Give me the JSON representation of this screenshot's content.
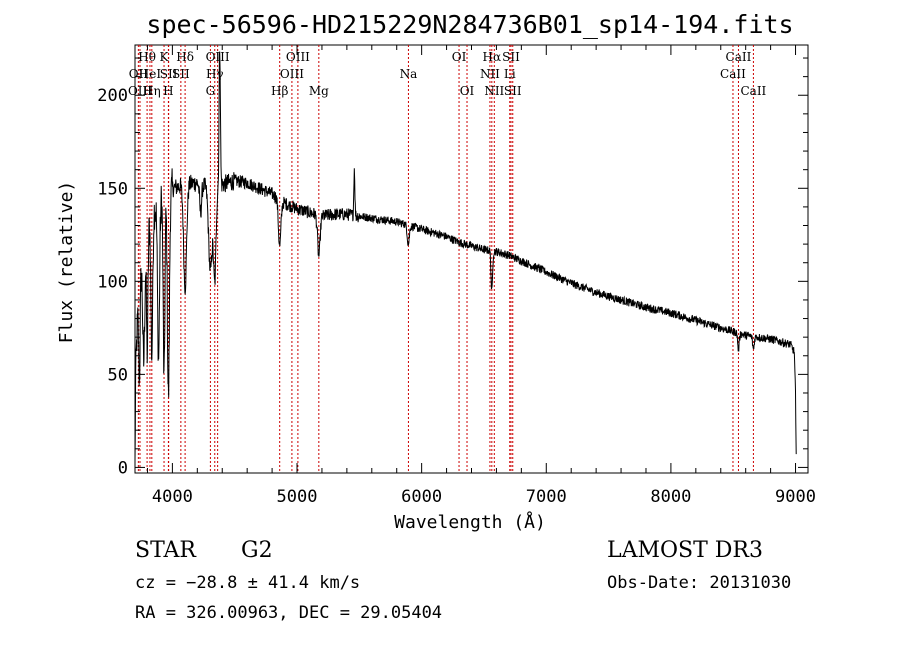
{
  "chart_data": {
    "type": "line",
    "title": "spec-56596-HD215229N284736B01_sp14-194.fits",
    "xlabel": "Wavelength (Å)",
    "ylabel": "Flux (relative)",
    "xlim": [
      3700,
      9100
    ],
    "ylim": [
      -3,
      227
    ],
    "xticks": [
      4000,
      5000,
      6000,
      7000,
      8000,
      9000
    ],
    "xtick_labels": [
      "4000",
      "5000",
      "6000",
      "7000",
      "8000",
      "9000"
    ],
    "yticks": [
      0,
      50,
      100,
      150,
      200
    ],
    "ytick_labels": [
      "0",
      "50",
      "100",
      "150",
      "200"
    ],
    "lines": [
      {
        "label": "Hθ",
        "wave": 3797,
        "row": 1
      },
      {
        "label": "OII",
        "wave": 3727,
        "row": 2
      },
      {
        "label": "OIII",
        "wave": 3740,
        "row": 3
      },
      {
        "label": "HeI",
        "wave": 3820,
        "row": 2
      },
      {
        "label": "Hη",
        "wave": 3835,
        "row": 3
      },
      {
        "label": "K",
        "wave": 3933,
        "row": 1
      },
      {
        "label": "SII",
        "wave": 3970,
        "row": 2
      },
      {
        "label": "H",
        "wave": 3968,
        "row": 3
      },
      {
        "label": "Hδ",
        "wave": 4102,
        "row": 1
      },
      {
        "label": "SII",
        "wave": 4068,
        "row": 2
      },
      {
        "label": "OIII",
        "wave": 4363,
        "row": 1
      },
      {
        "label": "Hγ",
        "wave": 4340,
        "row": 2
      },
      {
        "label": "G",
        "wave": 4305,
        "row": 3
      },
      {
        "label": "OIII",
        "wave": 5007,
        "row": 1
      },
      {
        "label": "OIII",
        "wave": 4959,
        "row": 2
      },
      {
        "label": "Hβ",
        "wave": 4861,
        "row": 3
      },
      {
        "label": "Mg",
        "wave": 5175,
        "row": 3
      },
      {
        "label": "Na",
        "wave": 5894,
        "row": 2
      },
      {
        "label": "OI",
        "wave": 6300,
        "row": 1
      },
      {
        "label": "OI",
        "wave": 6364,
        "row": 3
      },
      {
        "label": "Hα",
        "wave": 6563,
        "row": 1
      },
      {
        "label": "NII",
        "wave": 6548,
        "row": 2
      },
      {
        "label": "NII",
        "wave": 6583,
        "row": 3
      },
      {
        "label": "SII",
        "wave": 6717,
        "row": 1
      },
      {
        "label": "Li",
        "wave": 6707,
        "row": 2
      },
      {
        "label": "SII",
        "wave": 6731,
        "row": 3
      },
      {
        "label": "CaII",
        "wave": 8542,
        "row": 1
      },
      {
        "label": "CaII",
        "wave": 8498,
        "row": 2
      },
      {
        "label": "CaII",
        "wave": 8662,
        "row": 3
      }
    ],
    "continuum": [
      [
        3700,
        0
      ],
      [
        3705,
        45
      ],
      [
        3710,
        60
      ],
      [
        3730,
        100
      ],
      [
        3800,
        128
      ],
      [
        3850,
        138
      ],
      [
        3900,
        145
      ],
      [
        4000,
        150
      ],
      [
        4100,
        152
      ],
      [
        4200,
        153
      ],
      [
        4300,
        150
      ],
      [
        4400,
        152
      ],
      [
        4500,
        154
      ],
      [
        4600,
        153
      ],
      [
        4700,
        150
      ],
      [
        4800,
        147
      ],
      [
        4900,
        142
      ],
      [
        5000,
        139
      ],
      [
        5100,
        137
      ],
      [
        5200,
        135
      ],
      [
        5300,
        136
      ],
      [
        5400,
        136
      ],
      [
        5500,
        135
      ],
      [
        5600,
        134
      ],
      [
        5700,
        133
      ],
      [
        5800,
        132
      ],
      [
        5900,
        130
      ],
      [
        6000,
        128
      ],
      [
        6100,
        126
      ],
      [
        6200,
        124
      ],
      [
        6300,
        121
      ],
      [
        6400,
        119
      ],
      [
        6500,
        117
      ],
      [
        6600,
        116
      ],
      [
        6700,
        114
      ],
      [
        6800,
        111
      ],
      [
        6900,
        108
      ],
      [
        7000,
        105
      ],
      [
        7200,
        99
      ],
      [
        7400,
        94
      ],
      [
        7600,
        90
      ],
      [
        7800,
        86
      ],
      [
        8000,
        83
      ],
      [
        8200,
        79
      ],
      [
        8400,
        75
      ],
      [
        8600,
        71
      ],
      [
        8800,
        69
      ],
      [
        8960,
        66
      ],
      [
        8990,
        62
      ],
      [
        9000,
        40
      ],
      [
        9005,
        5
      ]
    ],
    "features": [
      {
        "wave": 3735,
        "depth": -55,
        "width": 6
      },
      {
        "wave": 3770,
        "depth": -60,
        "width": 8
      },
      {
        "wave": 3798,
        "depth": -65,
        "width": 6
      },
      {
        "wave": 3835,
        "depth": -75,
        "width": 7
      },
      {
        "wave": 3889,
        "depth": -85,
        "width": 8
      },
      {
        "wave": 3933,
        "depth": -100,
        "width": 7
      },
      {
        "wave": 3968,
        "depth": -110,
        "width": 8
      },
      {
        "wave": 4102,
        "depth": -55,
        "width": 12
      },
      {
        "wave": 4226,
        "depth": -15,
        "width": 8
      },
      {
        "wave": 4305,
        "depth": -45,
        "width": 14
      },
      {
        "wave": 4340,
        "depth": -50,
        "width": 10
      },
      {
        "wave": 4380,
        "depth": 75,
        "width": 5
      },
      {
        "wave": 4861,
        "depth": -25,
        "width": 10
      },
      {
        "wave": 5175,
        "depth": -22,
        "width": 10
      },
      {
        "wave": 5460,
        "depth": 25,
        "width": 4
      },
      {
        "wave": 5893,
        "depth": -10,
        "width": 8
      },
      {
        "wave": 6563,
        "depth": -22,
        "width": 6
      },
      {
        "wave": 8542,
        "depth": -9,
        "width": 6
      },
      {
        "wave": 8662,
        "depth": -7,
        "width": 6
      }
    ]
  },
  "info": {
    "type": "STAR",
    "subclass": "G2",
    "survey": "LAMOST DR3",
    "cz": "cz = −28.8 ± 41.4 km/s",
    "obs_date": "Obs-Date: 20131030",
    "radec": "RA = 326.00963, DEC =  29.05404"
  }
}
